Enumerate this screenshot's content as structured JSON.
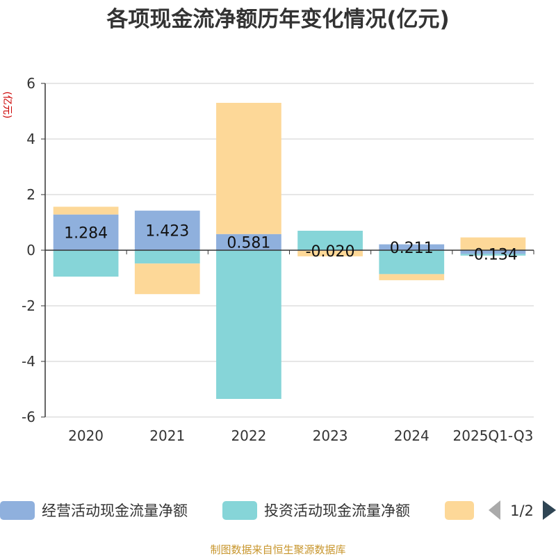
{
  "chart_data": {
    "type": "bar",
    "title": "各项现金流净额历年变化情况(亿元)",
    "unit_label": "(亿元)",
    "categories": [
      "2020",
      "2021",
      "2022",
      "2023",
      "2024",
      "2025Q1-Q3"
    ],
    "ylim": [
      -6,
      6
    ],
    "yticks": [
      6,
      4,
      2,
      0,
      -2,
      -4,
      -6
    ],
    "grid": true,
    "stacked": true,
    "series": [
      {
        "name": "经营活动现金流量净额",
        "color": "#8fb0dd",
        "values": [
          1.284,
          1.423,
          0.581,
          -0.02,
          0.211,
          -0.134
        ]
      },
      {
        "name": "投资活动现金流量净额",
        "color": "#86d5d8",
        "values": [
          -0.95,
          -0.48,
          -5.35,
          0.7,
          -0.86,
          -0.06
        ]
      },
      {
        "name": "",
        "color": "#fdd898",
        "values": [
          0.28,
          -1.1,
          4.72,
          -0.2,
          -0.22,
          0.46
        ]
      }
    ],
    "data_labels": [
      "1.284",
      "1.423",
      "0.581",
      "-0.020",
      "0.211",
      "-0.134"
    ]
  },
  "legend": {
    "items": [
      {
        "label": "经营活动现金流量净额",
        "color": "#8fb0dd"
      },
      {
        "label": "投资活动现金流量净额",
        "color": "#86d5d8"
      },
      {
        "label": "",
        "color": "#fdd898"
      }
    ],
    "page": "1/2"
  },
  "source": "制图数据来自恒生聚源数据库"
}
